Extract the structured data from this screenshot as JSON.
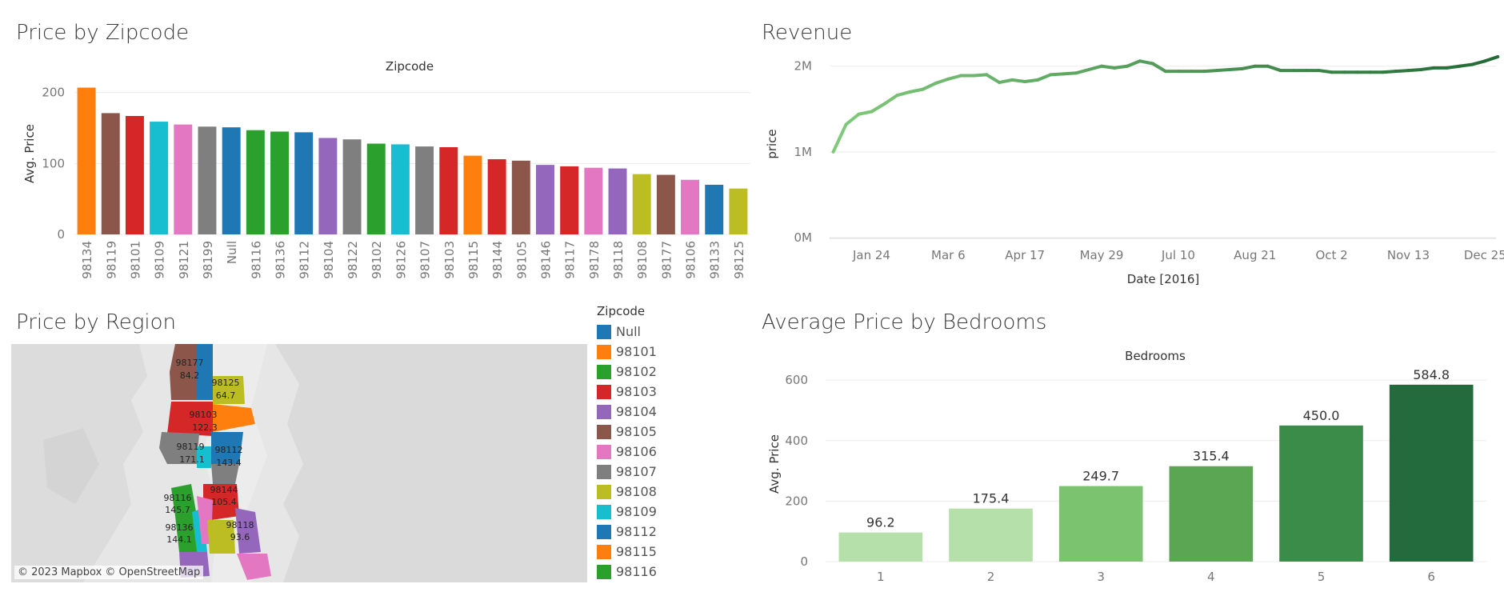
{
  "titles": {
    "zipcode": "Price by Zipcode",
    "revenue": "Revenue",
    "region": "Price by Region",
    "bedrooms": "Average Price by Bedrooms"
  },
  "map": {
    "copyright": "© 2023 Mapbox © OpenStreetMap",
    "legend_title": "Zipcode",
    "legend": [
      {
        "label": "Null",
        "color": "#1f77b4"
      },
      {
        "label": "98101",
        "color": "#ff7f0e"
      },
      {
        "label": "98102",
        "color": "#2ca02c"
      },
      {
        "label": "98103",
        "color": "#d62728"
      },
      {
        "label": "98104",
        "color": "#9467bd"
      },
      {
        "label": "98105",
        "color": "#8c564b"
      },
      {
        "label": "98106",
        "color": "#e377c2"
      },
      {
        "label": "98107",
        "color": "#7f7f7f"
      },
      {
        "label": "98108",
        "color": "#bcbd22"
      },
      {
        "label": "98109",
        "color": "#17becf"
      },
      {
        "label": "98112",
        "color": "#1f77b4"
      },
      {
        "label": "98115",
        "color": "#ff7f0e"
      },
      {
        "label": "98116",
        "color": "#2ca02c"
      }
    ],
    "labels": [
      {
        "zip": "98177",
        "value": "84.2"
      },
      {
        "zip": "98125",
        "value": "64.7"
      },
      {
        "zip": "98103",
        "value": "122.3"
      },
      {
        "zip": "98119",
        "value": "171.1"
      },
      {
        "zip": "98112",
        "value": "143.4"
      },
      {
        "zip": "98144",
        "value": "105.4"
      },
      {
        "zip": "98116",
        "value": "145.7"
      },
      {
        "zip": "98136",
        "value": "144.1"
      },
      {
        "zip": "98118",
        "value": "93.6"
      }
    ]
  },
  "chart_data": [
    {
      "type": "bar",
      "header": "Zipcode",
      "ylabel": "Avg. Price",
      "ylim": [
        0,
        220
      ],
      "yticks": [
        0,
        100,
        200
      ],
      "categories": [
        "98134",
        "98119",
        "98101",
        "98109",
        "98121",
        "98199",
        "Null",
        "98116",
        "98136",
        "98112",
        "98104",
        "98122",
        "98102",
        "98126",
        "98107",
        "98103",
        "98115",
        "98144",
        "98105",
        "98146",
        "98117",
        "98178",
        "98118",
        "98108",
        "98177",
        "98106",
        "98133",
        "98125"
      ],
      "values": [
        207,
        171,
        167,
        159,
        155,
        152,
        151,
        147,
        145,
        144,
        136,
        134,
        128,
        127,
        124,
        123,
        111,
        106,
        104,
        98,
        96,
        94,
        93,
        85,
        84,
        77,
        70,
        64.7
      ],
      "colors": [
        "#ff7f0e",
        "#8c564b",
        "#d62728",
        "#17becf",
        "#e377c2",
        "#7f7f7f",
        "#1f77b4",
        "#2ca02c",
        "#2ca02c",
        "#1f77b4",
        "#9467bd",
        "#7f7f7f",
        "#2ca02c",
        "#17becf",
        "#7f7f7f",
        "#d62728",
        "#ff7f0e",
        "#d62728",
        "#8c564b",
        "#9467bd",
        "#d62728",
        "#e377c2",
        "#9467bd",
        "#bcbd22",
        "#8c564b",
        "#e377c2",
        "#1f77b4",
        "#bcbd22"
      ]
    },
    {
      "type": "line",
      "xlabel": "Date [2016]",
      "ylabel": "price",
      "ylim": [
        0,
        2100000
      ],
      "yticks": [
        {
          "v": 0,
          "label": "0M"
        },
        {
          "v": 1000000,
          "label": "1M"
        },
        {
          "v": 2000000,
          "label": "2M"
        }
      ],
      "xtick_labels": [
        "Jan 24",
        "Mar 6",
        "Apr 17",
        "May 29",
        "Jul 10",
        "Aug 21",
        "Oct 2",
        "Nov 13",
        "Dec 25"
      ],
      "xtick_days": [
        24,
        66,
        108,
        150,
        192,
        234,
        276,
        318,
        360
      ],
      "xlim": [
        1,
        366
      ],
      "x": [
        "2016-01-03",
        "2016-01-10",
        "2016-01-17",
        "2016-01-24",
        "2016-01-31",
        "2016-02-07",
        "2016-02-14",
        "2016-02-21",
        "2016-02-28",
        "2016-03-06",
        "2016-03-13",
        "2016-03-20",
        "2016-03-27",
        "2016-04-03",
        "2016-04-10",
        "2016-04-17",
        "2016-04-24",
        "2016-05-01",
        "2016-05-08",
        "2016-05-15",
        "2016-05-22",
        "2016-05-29",
        "2016-06-05",
        "2016-06-12",
        "2016-06-19",
        "2016-06-26",
        "2016-07-03",
        "2016-07-10",
        "2016-07-17",
        "2016-07-24",
        "2016-07-31",
        "2016-08-07",
        "2016-08-14",
        "2016-08-21",
        "2016-08-28",
        "2016-09-04",
        "2016-09-11",
        "2016-09-18",
        "2016-09-25",
        "2016-10-02",
        "2016-10-09",
        "2016-10-16",
        "2016-10-23",
        "2016-10-30",
        "2016-11-06",
        "2016-11-13",
        "2016-11-20",
        "2016-11-27",
        "2016-12-04",
        "2016-12-11",
        "2016-12-18",
        "2016-12-25",
        "2017-01-01"
      ],
      "x_days": [
        3,
        10,
        17,
        24,
        31,
        38,
        45,
        52,
        59,
        66,
        73,
        80,
        87,
        94,
        101,
        108,
        115,
        122,
        129,
        136,
        143,
        150,
        157,
        164,
        171,
        178,
        185,
        192,
        199,
        206,
        213,
        220,
        227,
        234,
        241,
        248,
        255,
        262,
        269,
        276,
        283,
        290,
        297,
        304,
        311,
        318,
        325,
        332,
        339,
        346,
        353,
        360,
        367
      ],
      "values": [
        1000000,
        1320000,
        1440000,
        1470000,
        1560000,
        1660000,
        1700000,
        1730000,
        1800000,
        1850000,
        1890000,
        1890000,
        1900000,
        1810000,
        1840000,
        1820000,
        1840000,
        1900000,
        1910000,
        1920000,
        1960000,
        2000000,
        1980000,
        2000000,
        2060000,
        2030000,
        1940000,
        1940000,
        1940000,
        1940000,
        1950000,
        1960000,
        1970000,
        2000000,
        2000000,
        1950000,
        1950000,
        1950000,
        1950000,
        1930000,
        1930000,
        1930000,
        1930000,
        1930000,
        1940000,
        1950000,
        1960000,
        1980000,
        1980000,
        2000000,
        2020000,
        2060000,
        2110000
      ],
      "colors": {
        "start": "#7fc97a",
        "end": "#236b36"
      }
    },
    {
      "type": "bar",
      "header": "Bedrooms",
      "ylabel": "Avg. Price",
      "ylim": [
        0,
        640
      ],
      "yticks": [
        0,
        200,
        400,
        600
      ],
      "categories": [
        "1",
        "2",
        "3",
        "4",
        "5",
        "6"
      ],
      "values": [
        96.2,
        175.4,
        249.7,
        315.4,
        450.0,
        584.8
      ],
      "data_labels": [
        "96.2",
        "175.4",
        "249.7",
        "315.4",
        "450.0",
        "584.8"
      ],
      "colors": [
        "#b5e0a9",
        "#b5e0a9",
        "#7cc36f",
        "#5aa653",
        "#3a8c48",
        "#236b3d"
      ]
    }
  ]
}
